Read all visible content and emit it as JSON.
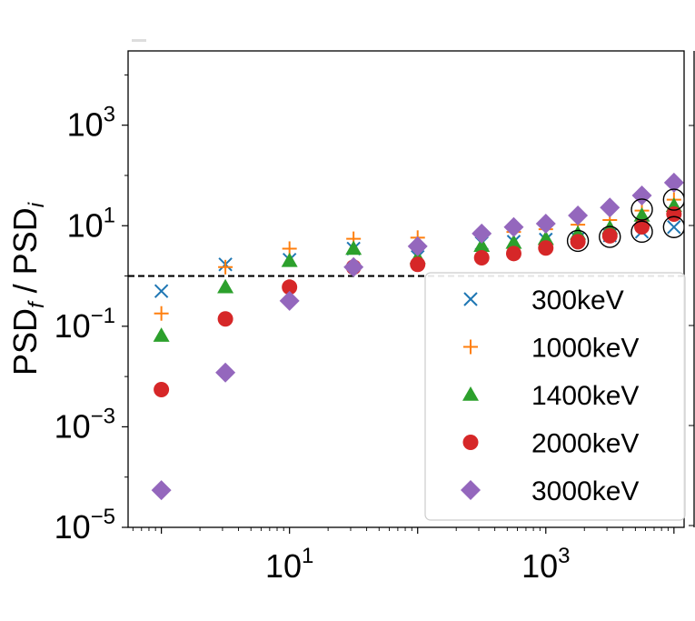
{
  "chart_data": {
    "type": "scatter",
    "x_scale": "log",
    "y_scale": "log",
    "xlim": [
      0.55,
      12000
    ],
    "ylim": [
      1e-05,
      30000
    ],
    "ylabel": {
      "main": "PSD",
      "sub_f": "f",
      "sep": " / ",
      "main2": "PSD",
      "sub_i": "i"
    },
    "xlabel": "",
    "x_ticks": [
      {
        "value": 10,
        "base": "10",
        "exp": "1"
      },
      {
        "value": 1000,
        "base": "10",
        "exp": "3"
      }
    ],
    "y_ticks": [
      {
        "value": 1e-05,
        "base": "10",
        "exp": "−5"
      },
      {
        "value": 0.001,
        "base": "10",
        "exp": "−3"
      },
      {
        "value": 0.1,
        "base": "10",
        "exp": "−1"
      },
      {
        "value": 10,
        "base": "10",
        "exp": "1"
      },
      {
        "value": 1000,
        "base": "10",
        "exp": "3"
      }
    ],
    "reference_line": {
      "y": 1,
      "style": "dashed",
      "color": "#000000"
    },
    "x": [
      1,
      3.16,
      10,
      31.6,
      100,
      316,
      562,
      1000,
      1780,
      3160,
      5620,
      10000
    ],
    "series": [
      {
        "name": "300keV",
        "marker": "x",
        "color": "#1f77b4",
        "values": [
          0.5,
          1.7,
          2.1,
          3.5,
          2.4,
          4.5,
          4.8,
          5.3,
          5.5,
          6.4,
          7.6,
          9.4
        ]
      },
      {
        "name": "1000keV",
        "marker": "plus",
        "color": "#ff7f0e",
        "values": [
          0.18,
          1.5,
          3.5,
          5.5,
          5.8,
          6.8,
          7.5,
          8.5,
          10.5,
          13,
          20,
          33
        ]
      },
      {
        "name": "1400keV",
        "marker": "triangle",
        "color": "#2ca02c",
        "values": [
          0.065,
          0.6,
          2.0,
          3.5,
          2.3,
          4.0,
          4.6,
          5.5,
          7.0,
          9.0,
          16,
          25
        ]
      },
      {
        "name": "2000keV",
        "marker": "circle",
        "color": "#d62728",
        "values": [
          0.0055,
          0.14,
          0.6,
          1.5,
          1.7,
          2.3,
          2.8,
          3.6,
          4.8,
          6.3,
          9.5,
          17
        ]
      },
      {
        "name": "3000keV",
        "marker": "diamond",
        "color": "#9467bd",
        "values": [
          5.5e-05,
          0.012,
          0.32,
          1.5,
          3.9,
          7.0,
          9.4,
          11,
          16,
          23,
          40,
          72
        ]
      }
    ],
    "circled_points": [
      {
        "x": 1780,
        "y": 5.0
      },
      {
        "x": 3160,
        "y": 6.0
      },
      {
        "x": 5620,
        "y": 7.6
      },
      {
        "x": 5620,
        "y": 21
      },
      {
        "x": 10000,
        "y": 9.4
      },
      {
        "x": 10000,
        "y": 33
      }
    ],
    "legend": {
      "placement": "lower-right",
      "entries": [
        "300keV",
        "1000keV",
        "1400keV",
        "2000keV",
        "3000keV"
      ]
    }
  }
}
